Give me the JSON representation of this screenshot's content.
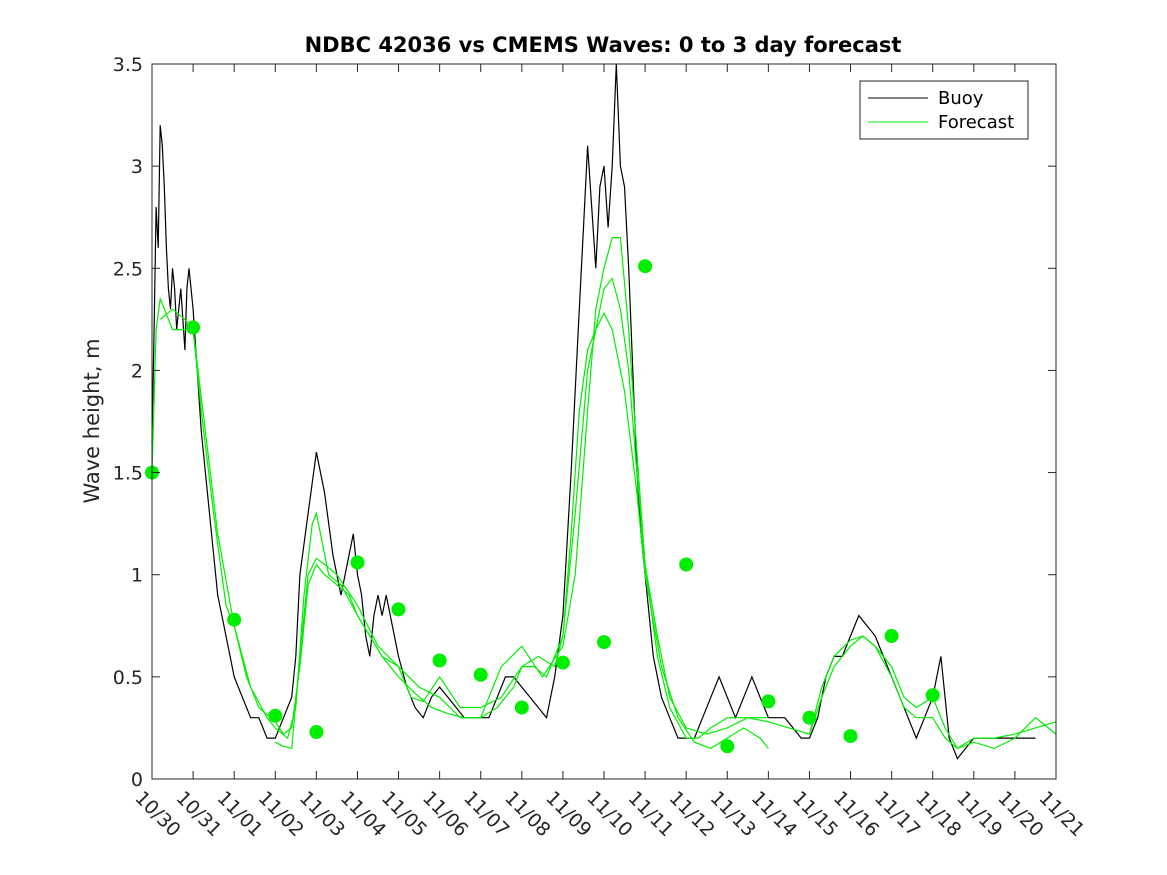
{
  "chart_data": {
    "type": "line",
    "title": "NDBC 42036 vs CMEMS Waves: 0 to 3 day forecast",
    "xlabel": "",
    "ylabel": "Wave height, m",
    "xlim_days": [
      0,
      22
    ],
    "ylim": [
      0,
      3.5
    ],
    "yticks": [
      "0",
      "0.5",
      "1",
      "1.5",
      "2",
      "2.5",
      "3",
      "3.5"
    ],
    "xtick_labels": [
      "10/30",
      "10/31",
      "11/01",
      "11/02",
      "11/03",
      "11/04",
      "11/05",
      "11/06",
      "11/07",
      "11/08",
      "11/09",
      "11/10",
      "11/11",
      "11/12",
      "11/13",
      "11/14",
      "11/15",
      "11/16",
      "11/17",
      "11/18",
      "11/19",
      "11/20",
      "11/21"
    ],
    "legend": {
      "position": "top-right",
      "entries": [
        "Buoy",
        "Forecast"
      ]
    },
    "colors": {
      "buoy": "#000000",
      "forecast": "#00ee00",
      "markers": "#00ee00"
    },
    "series": [
      {
        "name": "Buoy",
        "x": [
          0,
          0.05,
          0.1,
          0.15,
          0.2,
          0.25,
          0.3,
          0.35,
          0.4,
          0.45,
          0.5,
          0.55,
          0.6,
          0.7,
          0.8,
          0.85,
          0.9,
          1.0,
          1.1,
          1.2,
          1.3,
          1.4,
          1.5,
          1.6,
          1.7,
          1.8,
          1.9,
          2.0,
          2.2,
          2.4,
          2.6,
          2.8,
          3.0,
          3.2,
          3.4,
          3.5,
          3.6,
          3.8,
          4.0,
          4.2,
          4.4,
          4.5,
          4.6,
          4.8,
          4.9,
          5.0,
          5.1,
          5.2,
          5.3,
          5.4,
          5.5,
          5.6,
          5.7,
          5.8,
          5.9,
          6.0,
          6.2,
          6.4,
          6.6,
          6.8,
          7.0,
          7.2,
          7.4,
          7.6,
          7.8,
          8.0,
          8.2,
          8.4,
          8.6,
          8.8,
          9.0,
          9.2,
          9.4,
          9.6,
          9.8,
          10.0,
          10.2,
          10.4,
          10.5,
          10.6,
          10.7,
          10.8,
          10.9,
          11.0,
          11.1,
          11.2,
          11.3,
          11.4,
          11.5,
          11.6,
          11.7,
          11.8,
          11.9,
          12.0,
          12.2,
          12.4,
          12.6,
          12.8,
          13.0,
          13.2,
          13.4,
          13.6,
          13.8,
          14.0,
          14.2,
          14.4,
          14.6,
          14.8,
          15.0,
          15.2,
          15.4,
          15.6,
          15.8,
          16.0,
          16.2,
          16.4,
          16.6,
          16.8,
          17.0,
          17.2,
          17.4,
          17.6,
          17.8,
          18.0,
          18.2,
          18.4,
          18.6,
          18.8,
          19.0,
          19.2,
          19.4,
          19.6,
          19.8,
          20.0,
          20.5,
          21.0,
          21.5
        ],
        "values": [
          1.65,
          2.2,
          2.8,
          2.6,
          3.2,
          3.1,
          2.9,
          2.6,
          2.4,
          2.3,
          2.5,
          2.4,
          2.2,
          2.4,
          2.1,
          2.4,
          2.5,
          2.3,
          2.0,
          1.7,
          1.5,
          1.3,
          1.1,
          0.9,
          0.8,
          0.7,
          0.6,
          0.5,
          0.4,
          0.3,
          0.3,
          0.2,
          0.2,
          0.3,
          0.4,
          0.6,
          1.0,
          1.3,
          1.6,
          1.4,
          1.1,
          1.0,
          0.9,
          1.1,
          1.2,
          1.0,
          0.9,
          0.7,
          0.6,
          0.8,
          0.9,
          0.8,
          0.9,
          0.8,
          0.7,
          0.6,
          0.45,
          0.35,
          0.3,
          0.4,
          0.45,
          0.4,
          0.35,
          0.3,
          0.3,
          0.3,
          0.3,
          0.4,
          0.5,
          0.5,
          0.45,
          0.4,
          0.35,
          0.3,
          0.5,
          0.8,
          1.5,
          2.3,
          2.7,
          3.1,
          2.8,
          2.5,
          2.9,
          3.0,
          2.7,
          3.0,
          3.5,
          3.0,
          2.9,
          2.5,
          2.0,
          1.5,
          1.2,
          1.0,
          0.6,
          0.4,
          0.3,
          0.2,
          0.2,
          0.2,
          0.3,
          0.4,
          0.5,
          0.4,
          0.3,
          0.4,
          0.5,
          0.4,
          0.3,
          0.3,
          0.3,
          0.25,
          0.2,
          0.2,
          0.3,
          0.5,
          0.6,
          0.6,
          0.7,
          0.8,
          0.75,
          0.7,
          0.6,
          0.5,
          0.4,
          0.3,
          0.2,
          0.3,
          0.4,
          0.6,
          0.2,
          0.1,
          0.15,
          0.2,
          0.2,
          0.2,
          0.2
        ]
      },
      {
        "name": "Forecast",
        "x": [
          0,
          0.1,
          0.2,
          0.3,
          0.5,
          0.8,
          1.0,
          1.2,
          1.5,
          1.8,
          2.0,
          2.3,
          2.6,
          3.0,
          3.2,
          3.4,
          3.6,
          3.8,
          4.0,
          4.2,
          4.5,
          4.8,
          5.0,
          5.3,
          5.6,
          6.0,
          6.3,
          6.6,
          7.0,
          7.5,
          8.0,
          8.5,
          9.0,
          9.3,
          9.6,
          10.0,
          10.2,
          10.4,
          10.6,
          10.8,
          11.0,
          11.2,
          11.4,
          11.6,
          11.8,
          12.0,
          12.3,
          12.6,
          13.0,
          13.3,
          13.6,
          14.0,
          14.5,
          15.0,
          15.5,
          16.0,
          16.3,
          16.6,
          17.0,
          17.3,
          17.6,
          18.0,
          18.3,
          18.6,
          19.0,
          19.3,
          19.6,
          20.0,
          20.5,
          21.0,
          21.5,
          22.0
        ],
        "values": [
          1.5,
          2.2,
          2.35,
          2.3,
          2.2,
          2.2,
          2.2,
          1.8,
          1.3,
          0.85,
          0.75,
          0.5,
          0.35,
          0.28,
          0.22,
          0.25,
          0.55,
          0.95,
          1.05,
          1.0,
          0.95,
          0.9,
          0.8,
          0.7,
          0.6,
          0.55,
          0.4,
          0.38,
          0.5,
          0.35,
          0.35,
          0.4,
          0.55,
          0.55,
          0.5,
          0.7,
          1.2,
          1.8,
          2.1,
          2.2,
          2.4,
          2.45,
          2.3,
          2.0,
          1.5,
          1.05,
          0.6,
          0.35,
          0.2,
          0.2,
          0.25,
          0.3,
          0.3,
          0.28,
          0.25,
          0.22,
          0.4,
          0.55,
          0.65,
          0.7,
          0.65,
          0.5,
          0.35,
          0.3,
          0.3,
          0.2,
          0.15,
          0.2,
          0.2,
          0.22,
          0.25,
          0.28
        ]
      },
      {
        "name": "",
        "x": [
          0.2,
          0.5,
          0.8,
          1.0,
          1.3,
          1.6,
          2.0,
          2.4,
          2.8,
          3.0,
          3.3,
          3.5,
          3.7,
          3.9,
          4.0,
          4.3,
          4.6,
          5.0,
          5.3,
          5.6,
          6.0,
          6.4,
          6.8,
          7.2,
          7.6,
          8.0,
          8.4,
          8.8,
          9.0,
          9.4,
          9.8,
          10.0,
          10.3,
          10.6,
          10.8,
          11.0,
          11.2,
          11.5,
          11.8,
          12.0,
          12.4,
          12.8,
          13.2,
          13.6,
          14.0,
          14.4,
          14.8,
          15.0
        ],
        "values": [
          2.25,
          2.3,
          2.25,
          2.2,
          1.7,
          1.2,
          0.75,
          0.45,
          0.3,
          0.25,
          0.2,
          0.35,
          0.9,
          1.25,
          1.3,
          1.0,
          0.95,
          0.8,
          0.7,
          0.6,
          0.5,
          0.42,
          0.35,
          0.32,
          0.3,
          0.3,
          0.35,
          0.45,
          0.55,
          0.6,
          0.55,
          0.7,
          1.3,
          2.0,
          2.2,
          2.28,
          2.2,
          1.9,
          1.4,
          1.0,
          0.55,
          0.3,
          0.18,
          0.15,
          0.2,
          0.25,
          0.2,
          0.15
        ]
      },
      {
        "name": "",
        "x": [
          3.0,
          3.2,
          3.4,
          3.6,
          3.8,
          4.0,
          4.2,
          4.5,
          5.0,
          5.5,
          6.0,
          6.5,
          7.0,
          7.5,
          8.0,
          8.5,
          9.0,
          9.5,
          10.0,
          10.3,
          10.6,
          10.8,
          11.0,
          11.2,
          11.4,
          11.6,
          11.8,
          12.0,
          12.3,
          12.6,
          13.0,
          13.5,
          14.0,
          14.5,
          15.0
        ],
        "values": [
          0.18,
          0.16,
          0.15,
          0.6,
          1.0,
          1.08,
          1.05,
          1.0,
          0.85,
          0.65,
          0.55,
          0.45,
          0.4,
          0.3,
          0.3,
          0.55,
          0.65,
          0.5,
          0.65,
          1.0,
          1.8,
          2.3,
          2.5,
          2.65,
          2.65,
          2.2,
          1.6,
          1.05,
          0.7,
          0.4,
          0.25,
          0.22,
          0.25,
          0.3,
          0.3
        ]
      },
      {
        "name": "",
        "x": [
          16.0,
          16.3,
          16.6,
          17.0,
          17.3,
          17.6,
          18.0,
          18.3,
          18.6,
          19.0,
          19.3,
          19.6,
          20.0,
          20.5,
          21.0,
          21.5,
          22.0
        ],
        "values": [
          0.22,
          0.45,
          0.6,
          0.68,
          0.7,
          0.65,
          0.55,
          0.4,
          0.35,
          0.4,
          0.25,
          0.15,
          0.18,
          0.15,
          0.2,
          0.3,
          0.22
        ]
      }
    ],
    "markers": {
      "x": [
        0,
        1,
        2,
        3,
        4,
        5,
        6,
        7,
        8,
        9,
        10,
        11,
        12,
        13,
        14,
        15,
        16,
        17,
        18,
        19
      ],
      "values": [
        1.5,
        2.21,
        0.78,
        0.31,
        0.23,
        1.06,
        0.83,
        0.58,
        0.51,
        0.35,
        0.57,
        0.67,
        2.51,
        1.05,
        0.16,
        0.38,
        0.3,
        0.21,
        0.7,
        0.41
      ]
    }
  }
}
